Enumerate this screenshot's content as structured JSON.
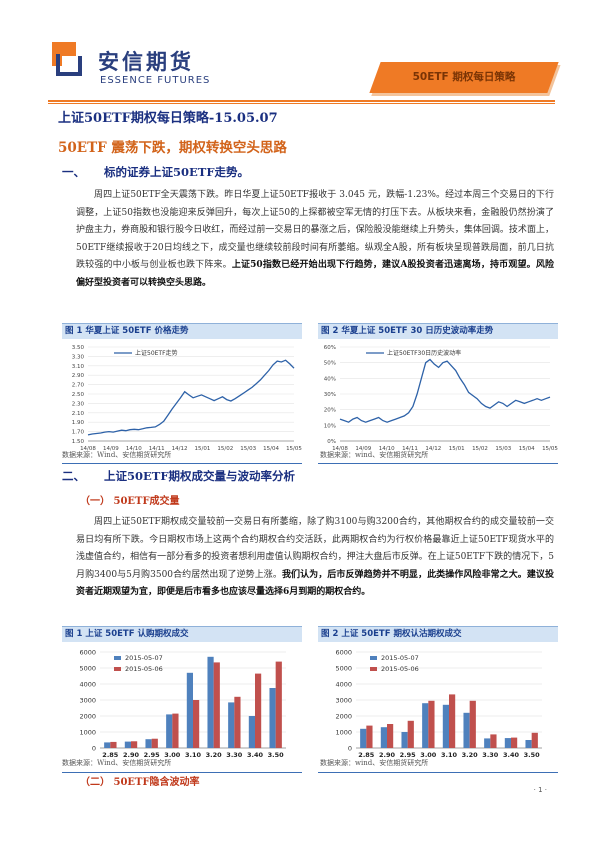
{
  "header": {
    "company_cn": "安信期货",
    "company_en": "ESSENCE FUTURES",
    "report_tag": "50ETF 期权每日策略"
  },
  "doc_title": "上证50ETF期权每日策略-15.05.07",
  "sub_title": "50ETF 震荡下跌，期权转换空头思路",
  "section1": {
    "num": "一、",
    "title": "标的证券上证50ETF走势。",
    "para_start": "周四上证50ETF全天震荡下跌。昨日华夏上证50ETF报收于  3.045  元，跌幅-1.23%。经过本周三个交易日的下行调整，上证50指数也没能迎来反弹回升，每次上证50的上探都被空军无情的打压下去。从板块来看，金融股仍然扮演了护盘主力，券商股和银行股今日收红，而经过前一交易日的暴涨之后，保险股没能继续上升势头，集体回调。技术面上，50ETF继续报收于20日均线之下，成交量也继续较前段时间有所萎缩。纵观全A股，所有板块呈现普跌局面，前几日抗跌较强的中小板与创业板也跌下阵来。",
    "para_bold": "上证50指数已经开始出现下行趋势，建议A股投资者迅速离场，持币观望。风险偏好型投资者可以转换空头思路。"
  },
  "fig1": {
    "title": "图 1 华夏上证 50ETF 价格走势",
    "legend": "上证50ETF走势",
    "source": "数据来源：Wind、安信期货研究所"
  },
  "fig2": {
    "title": "图 2 华夏上证 50ETF 30 日历史波动率走势",
    "legend": "上证50ETF30日历史波动率",
    "source": "数据来源：wind、安信期货研究所"
  },
  "section2": {
    "num": "二、",
    "title": "上证50ETF期权成交量与波动率分析",
    "sub1": "（一）  50ETF成交量",
    "para_start": "周四上证50ETF期权成交量较前一交易日有所萎缩，除了购3100与购3200合约，其他期权合约的成交量较前一交易日均有所下跌。今日期权市场上这两个合约期权合约交活跃，此两期权合约为行权价格最靠近上证50ETF现货水平的浅虚值合约，相信有一部分看多的投资者想利用虚值认购期权合约，押注大盘后市反弹。在上证50ETF下跌的情况下，5月购3400与5月购3500合约居然出现了逆势上涨。",
    "para_bold": "我们认为，后市反弹趋势并不明显，此类操作风险非常之大。建议投资者近期观望为宜，即便是后市看多也应该尽量选择6月到期的期权合约。",
    "sub2": "（二）  50ETF隐含波动率"
  },
  "fig3": {
    "title": "图 1 上证 50ETF 认购期权成交",
    "source": "数据来源：Wind、安信期货研究所"
  },
  "fig4": {
    "title": "图 2 上证 50ETF 期权认沽期权成交",
    "source": "数据来源：wind、安信期货研究所"
  },
  "page_number": "· 1 ·",
  "chart_data": [
    {
      "type": "line",
      "title": "图 1 华夏上证 50ETF 价格走势",
      "x_ticks": [
        "14/08",
        "14/09",
        "14/10",
        "14/11",
        "14/12",
        "15/01",
        "15/02",
        "15/03",
        "15/04",
        "15/05"
      ],
      "ylim": [
        1.5,
        3.5
      ],
      "y_ticks": [
        "1.50",
        "1.70",
        "1.90",
        "2.10",
        "2.30",
        "2.50",
        "2.70",
        "2.90",
        "3.10",
        "3.30",
        "3.50"
      ],
      "series": [
        {
          "name": "上证50ETF走势",
          "color": "#2e62a8",
          "values": [
            1.63,
            1.65,
            1.66,
            1.67,
            1.69,
            1.7,
            1.69,
            1.71,
            1.73,
            1.72,
            1.74,
            1.75,
            1.74,
            1.76,
            1.78,
            1.79,
            1.8,
            1.85,
            1.92,
            2.05,
            2.18,
            2.3,
            2.42,
            2.55,
            2.48,
            2.42,
            2.45,
            2.48,
            2.44,
            2.4,
            2.36,
            2.4,
            2.44,
            2.38,
            2.35,
            2.4,
            2.46,
            2.52,
            2.58,
            2.64,
            2.72,
            2.8,
            2.9,
            3.0,
            3.12,
            3.2,
            3.18,
            3.22,
            3.14,
            3.05
          ]
        }
      ]
    },
    {
      "type": "line",
      "title": "图 2 华夏上证 50ETF 30 日历史波动率走势",
      "x_ticks": [
        "14/08",
        "14/09",
        "14/10",
        "14/11",
        "14/12",
        "15/01",
        "15/02",
        "15/03",
        "15/04",
        "15/05"
      ],
      "ylim": [
        0,
        60
      ],
      "y_ticks": [
        "0%",
        "10%",
        "20%",
        "30%",
        "40%",
        "50%",
        "60%"
      ],
      "series": [
        {
          "name": "上证50ETF30日历史波动率",
          "color": "#2e62a8",
          "values": [
            14,
            13,
            12,
            14,
            15,
            13,
            12,
            13,
            14,
            15,
            13,
            12,
            13,
            14,
            15,
            16,
            18,
            22,
            30,
            40,
            50,
            52,
            49,
            47,
            50,
            51,
            48,
            45,
            40,
            36,
            31,
            29,
            27,
            24,
            22,
            21,
            23,
            25,
            24,
            22,
            24,
            26,
            25,
            24,
            25,
            26,
            27,
            26,
            27,
            28
          ]
        }
      ]
    },
    {
      "type": "bar",
      "title": "图 1 上证 50ETF 认购期权成交",
      "categories": [
        "2.85",
        "2.90",
        "2.95",
        "3.00",
        "3.10",
        "3.20",
        "3.30",
        "3.40",
        "3.50"
      ],
      "ylim": [
        0,
        6000
      ],
      "series": [
        {
          "name": "2015-05-07",
          "color": "#4f81bd",
          "values": [
            350,
            400,
            550,
            2100,
            4700,
            5700,
            2850,
            2000,
            3750
          ]
        },
        {
          "name": "2015-05-06",
          "color": "#c0504d",
          "values": [
            380,
            420,
            580,
            2150,
            3000,
            5350,
            3200,
            4650,
            5400
          ]
        }
      ]
    },
    {
      "type": "bar",
      "title": "图 2 上证 50ETF 期权认沽期权成交",
      "categories": [
        "2.85",
        "2.90",
        "2.95",
        "3.00",
        "3.10",
        "3.20",
        "3.30",
        "3.40",
        "3.50"
      ],
      "ylim": [
        0,
        6000
      ],
      "series": [
        {
          "name": "2015-05-07",
          "color": "#4f81bd",
          "values": [
            1200,
            1300,
            1000,
            2800,
            2700,
            2200,
            600,
            620,
            500
          ]
        },
        {
          "name": "2015-05-06",
          "color": "#c0504d",
          "values": [
            1400,
            1500,
            1700,
            2950,
            3350,
            2950,
            850,
            650,
            950
          ]
        }
      ]
    }
  ]
}
